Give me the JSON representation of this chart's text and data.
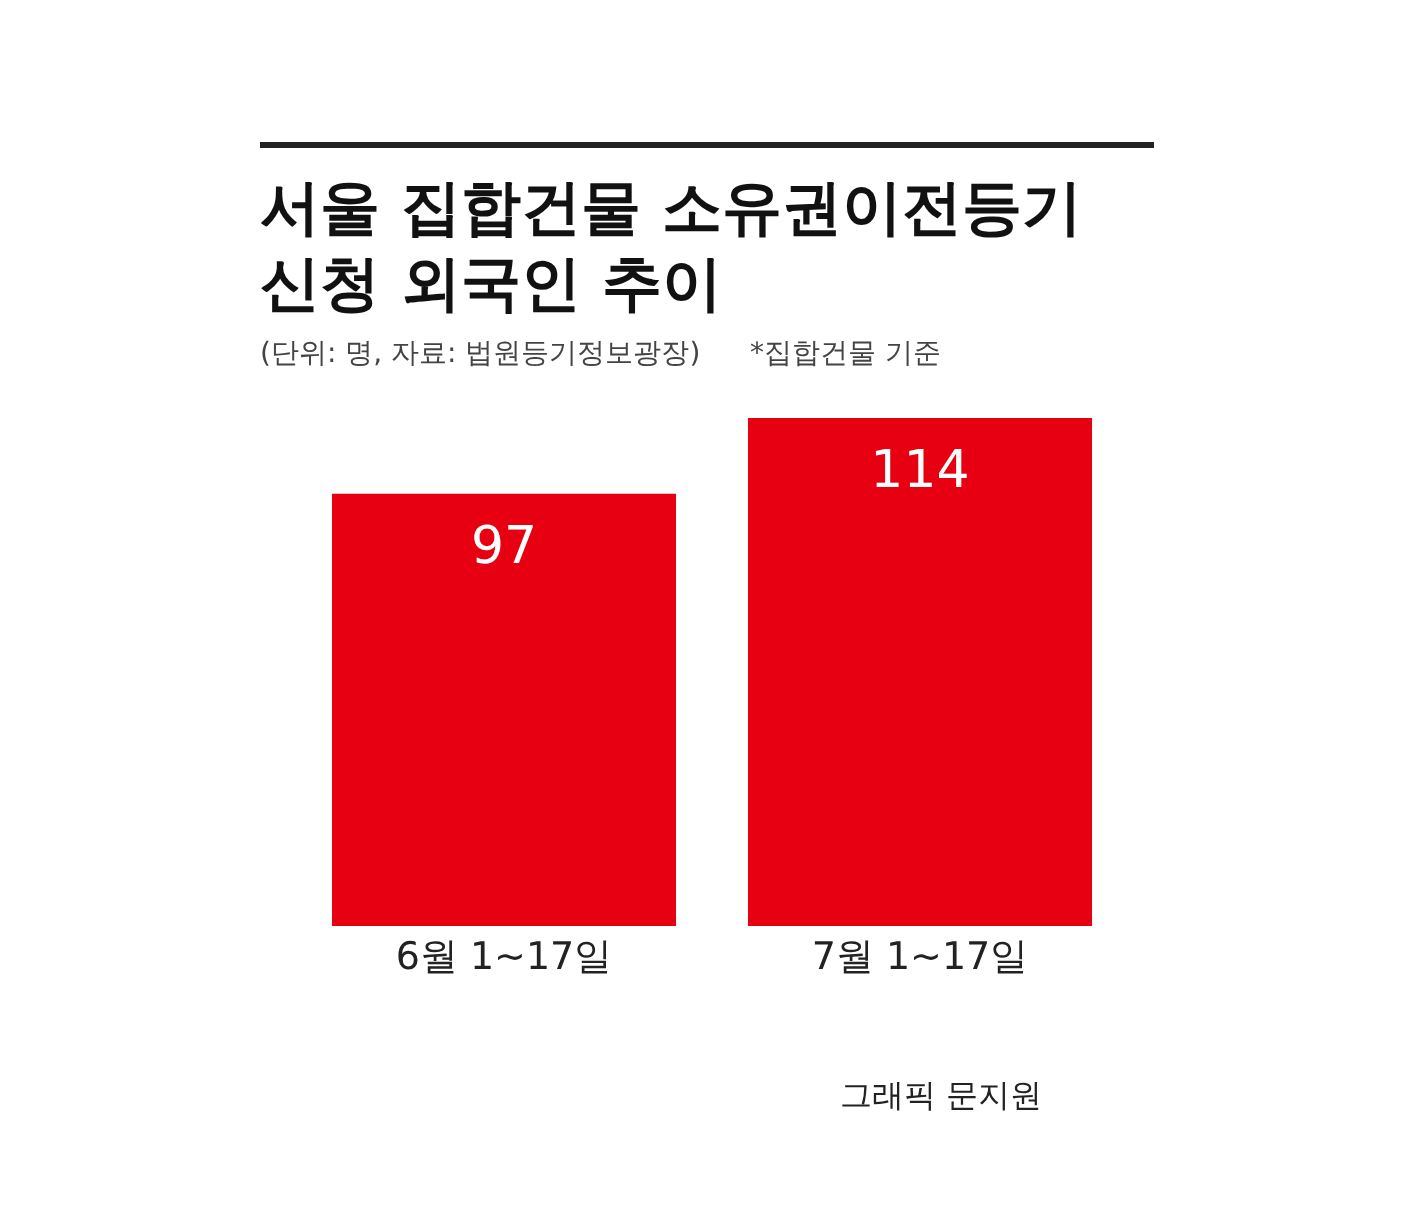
{
  "chart_data": {
    "type": "bar",
    "title": "서울 집합건물 소유권이전등기\n신청 외국인 추이",
    "subtitle": "(단위: 명, 자료: 법원등기정보광장)",
    "annotations": [
      "*집합건물 기준",
      "그래픽 문지원"
    ],
    "categories": [
      "6월 1~17일",
      "7월 1~17일"
    ],
    "values": [
      97,
      114
    ],
    "color": "#e60012",
    "data_labels": true
  }
}
